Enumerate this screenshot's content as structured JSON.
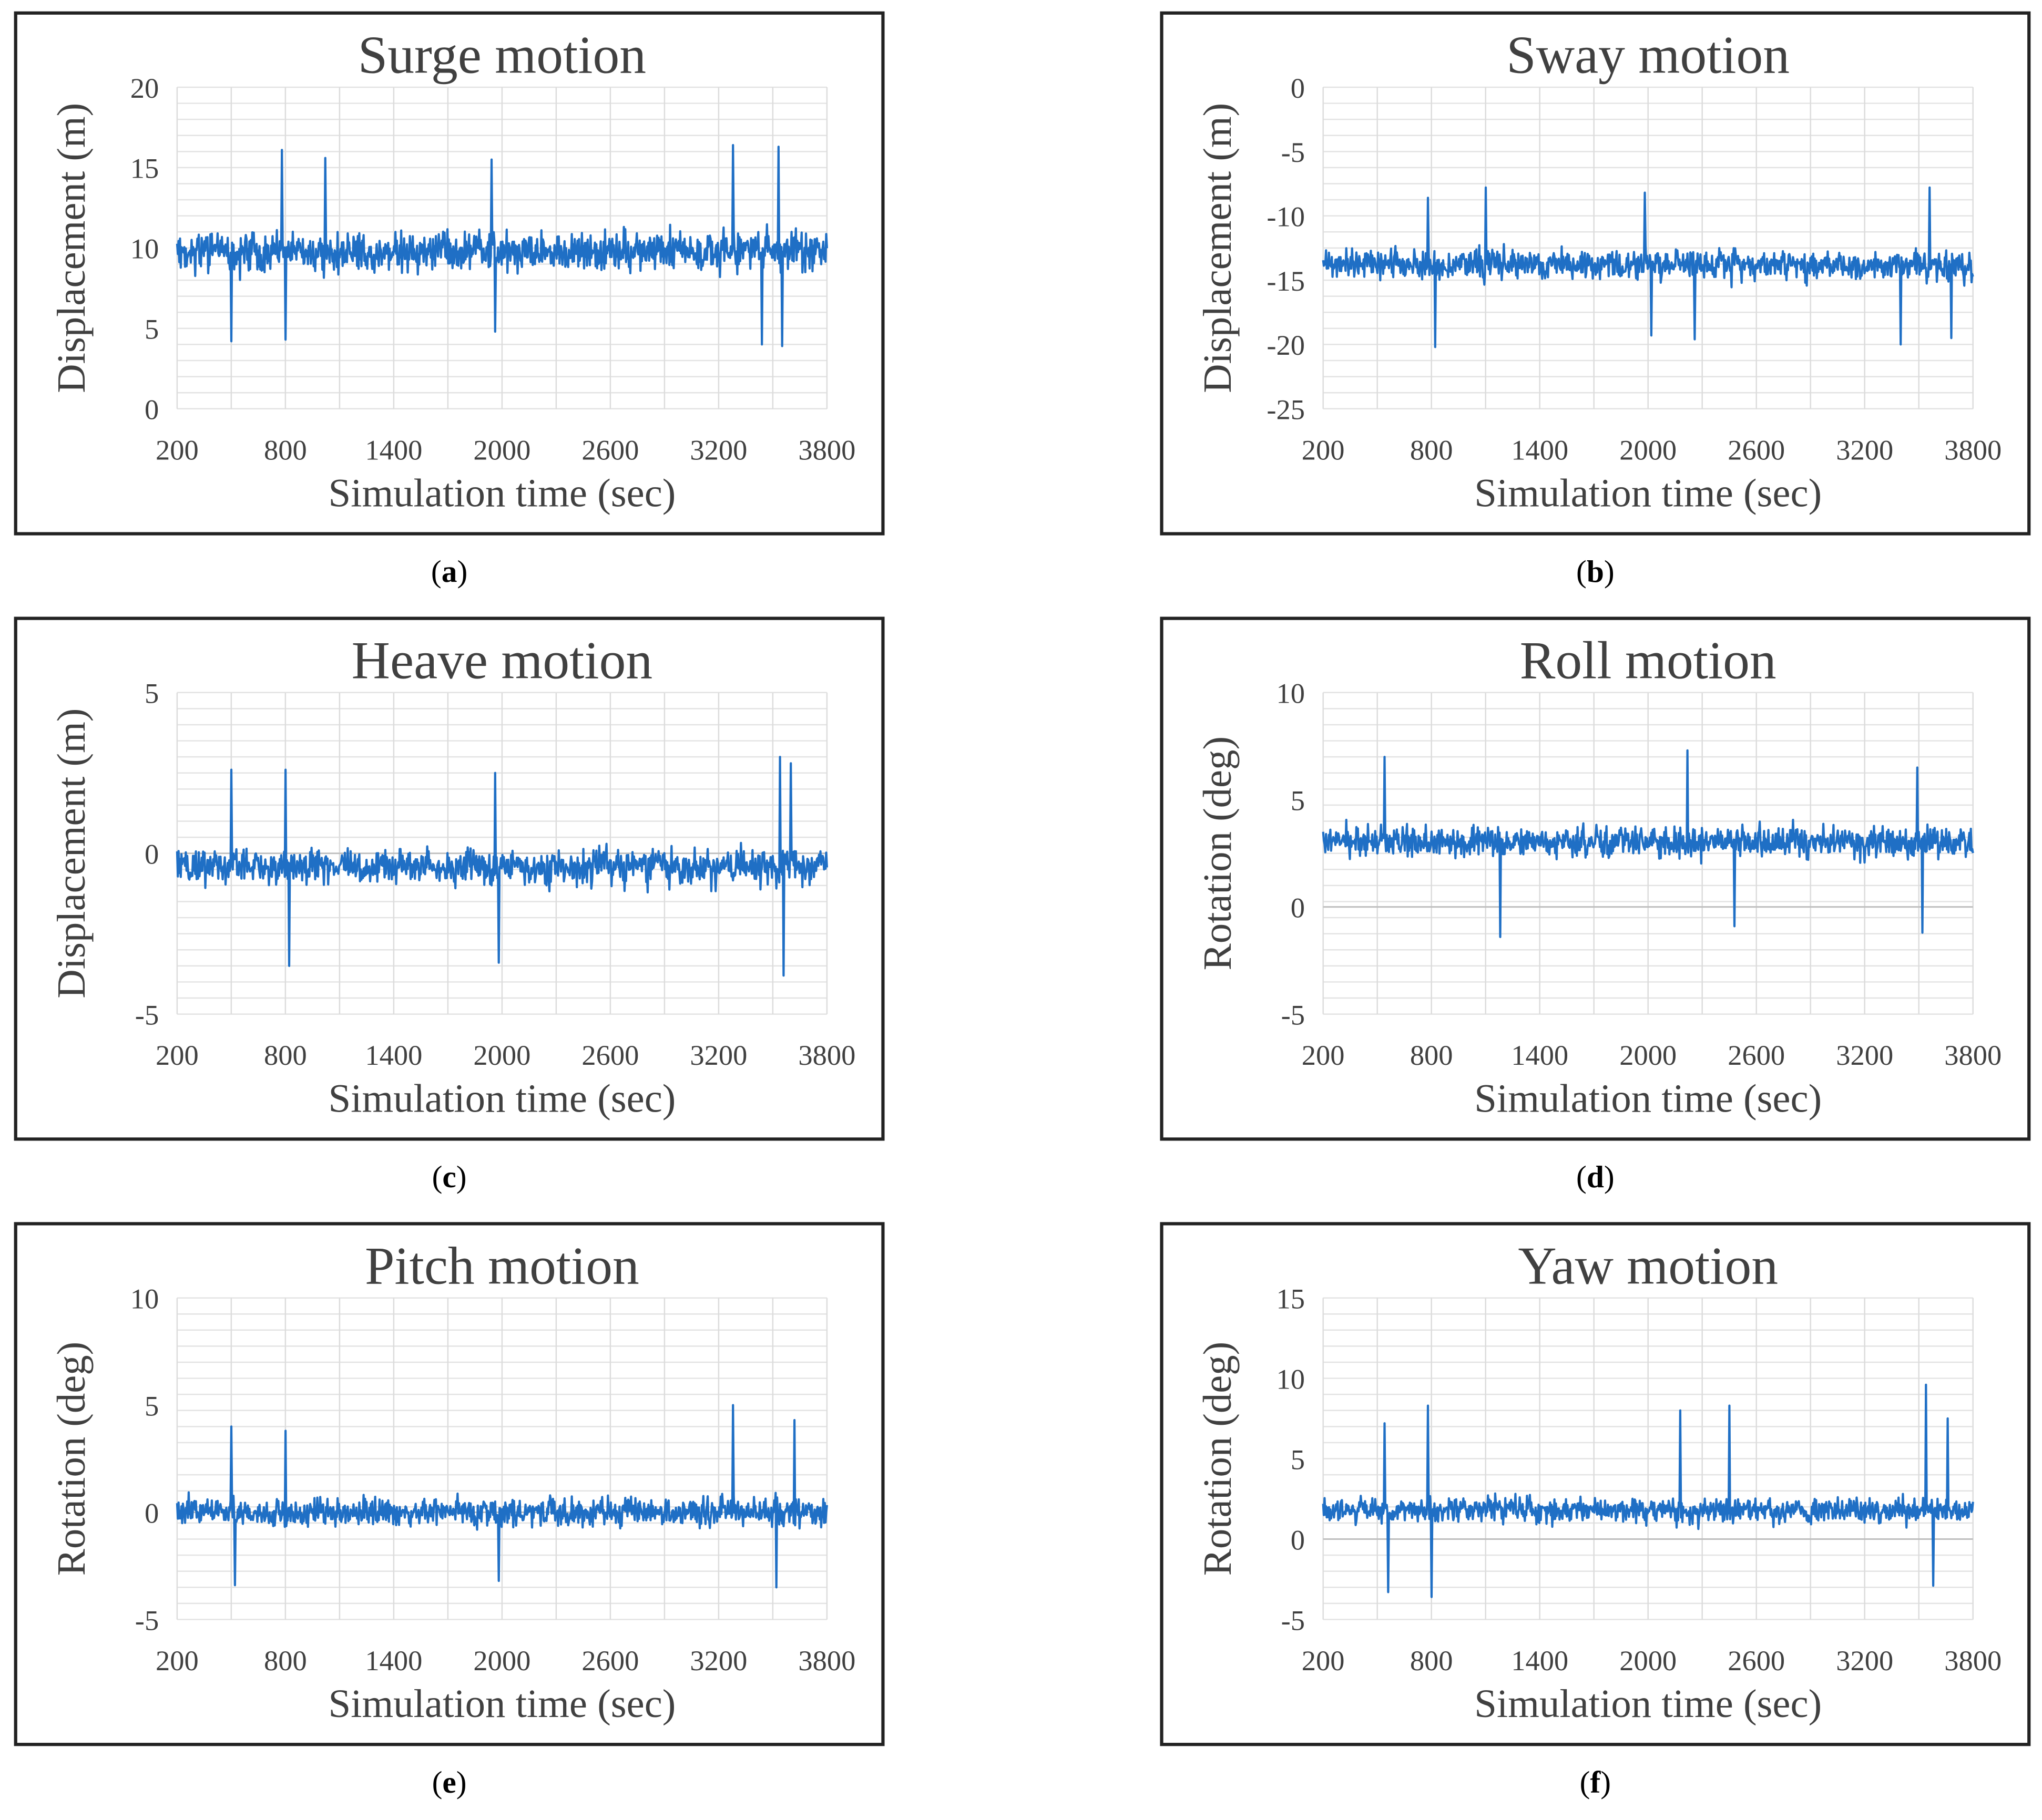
{
  "chart_data": [
    {
      "type": "line",
      "panel_label": "a",
      "title": "Surge motion",
      "xlabel": "Simulation time (sec)",
      "ylabel": "Displacement (m)",
      "xlim": [
        200,
        3800
      ],
      "ylim": [
        0,
        20
      ],
      "xticks": [
        "200",
        "800",
        "1400",
        "2000",
        "2600",
        "3200",
        "3800"
      ],
      "yticks": [
        "0",
        "5",
        "10",
        "15",
        "20"
      ],
      "series": [
        {
          "name": "Surge",
          "color": "#1f6fc5",
          "mean": 9.8,
          "amplitude": 2.3,
          "peaks": [
            [
              500,
              4.2
            ],
            [
              780,
              16.1
            ],
            [
              800,
              4.3
            ],
            [
              1020,
              15.6
            ],
            [
              1940,
              15.5
            ],
            [
              1960,
              4.8
            ],
            [
              3280,
              16.4
            ],
            [
              3440,
              4.0
            ],
            [
              3530,
              16.3
            ],
            [
              3550,
              3.9
            ]
          ]
        }
      ],
      "grid": true
    },
    {
      "type": "line",
      "panel_label": "b",
      "title": "Sway motion",
      "xlabel": "Simulation time (sec)",
      "ylabel": "Displacement (m)",
      "xlim": [
        200,
        3800
      ],
      "ylim": [
        -25,
        0
      ],
      "xticks": [
        "200",
        "800",
        "1400",
        "2000",
        "2600",
        "3200",
        "3800"
      ],
      "yticks": [
        "-25",
        "-20",
        "-15",
        "-10",
        "-5",
        "0"
      ],
      "series": [
        {
          "name": "Sway",
          "color": "#1f6fc5",
          "mean": -13.8,
          "amplitude": 2.1,
          "peaks": [
            [
              780,
              -8.6
            ],
            [
              820,
              -20.2
            ],
            [
              1100,
              -7.8
            ],
            [
              1980,
              -8.2
            ],
            [
              2020,
              -19.3
            ],
            [
              2260,
              -19.6
            ],
            [
              3400,
              -20.0
            ],
            [
              3560,
              -7.8
            ],
            [
              3680,
              -19.5
            ]
          ]
        }
      ],
      "grid": true
    },
    {
      "type": "line",
      "panel_label": "c",
      "title": "Heave motion",
      "xlabel": "Simulation time (sec)",
      "ylabel": "Displacement (m)",
      "xlim": [
        200,
        3800
      ],
      "ylim": [
        -5,
        5
      ],
      "xticks": [
        "200",
        "800",
        "1400",
        "2000",
        "2600",
        "3200",
        "3800"
      ],
      "yticks": [
        "-5",
        "0",
        "5"
      ],
      "series": [
        {
          "name": "Heave",
          "color": "#1f6fc5",
          "mean": -0.4,
          "amplitude": 1.0,
          "peaks": [
            [
              500,
              2.6
            ],
            [
              800,
              2.6
            ],
            [
              820,
              -3.5
            ],
            [
              1960,
              2.5
            ],
            [
              1980,
              -3.4
            ],
            [
              3540,
              3.0
            ],
            [
              3560,
              -3.8
            ],
            [
              3600,
              2.8
            ]
          ]
        }
      ],
      "grid": true
    },
    {
      "type": "line",
      "panel_label": "d",
      "title": "Roll motion",
      "xlabel": "Simulation time (sec)",
      "ylabel": "Rotation (deg)",
      "xlim": [
        200,
        3800
      ],
      "ylim": [
        -5,
        10
      ],
      "xticks": [
        "200",
        "800",
        "1400",
        "2000",
        "2600",
        "3200",
        "3800"
      ],
      "yticks": [
        "-5",
        "0",
        "5",
        "10"
      ],
      "series": [
        {
          "name": "Roll",
          "color": "#1f6fc5",
          "mean": 3.0,
          "amplitude": 1.3,
          "peaks": [
            [
              540,
              7.0
            ],
            [
              1180,
              -1.4
            ],
            [
              2220,
              7.3
            ],
            [
              2480,
              -0.9
            ],
            [
              3520,
              -1.2
            ],
            [
              3490,
              6.5
            ]
          ]
        }
      ],
      "grid": true
    },
    {
      "type": "line",
      "panel_label": "e",
      "title": "Pitch motion",
      "xlabel": "Simulation time (sec)",
      "ylabel": "Rotation (deg)",
      "xlim": [
        200,
        3800
      ],
      "ylim": [
        -5,
        10
      ],
      "xticks": [
        "200",
        "800",
        "1400",
        "2000",
        "2600",
        "3200",
        "3800"
      ],
      "yticks": [
        "-5",
        "0",
        "5",
        "10"
      ],
      "series": [
        {
          "name": "Pitch",
          "color": "#1f6fc5",
          "mean": 0.0,
          "amplitude": 1.2,
          "peaks": [
            [
              500,
              4.0
            ],
            [
              520,
              -3.4
            ],
            [
              800,
              3.8
            ],
            [
              1980,
              -3.2
            ],
            [
              3280,
              5.0
            ],
            [
              3520,
              -3.5
            ],
            [
              3620,
              4.3
            ]
          ]
        }
      ],
      "grid": true
    },
    {
      "type": "line",
      "panel_label": "f",
      "title": "Yaw motion",
      "xlabel": "Simulation time (sec)",
      "ylabel": "Rotation (deg)",
      "xlim": [
        200,
        3800
      ],
      "ylim": [
        -5,
        15
      ],
      "xticks": [
        "200",
        "800",
        "1400",
        "2000",
        "2600",
        "3200",
        "3800"
      ],
      "yticks": [
        "-5",
        "0",
        "5",
        "10",
        "15"
      ],
      "series": [
        {
          "name": "Yaw",
          "color": "#1f6fc5",
          "mean": 1.8,
          "amplitude": 1.4,
          "peaks": [
            [
              540,
              7.2
            ],
            [
              560,
              -3.3
            ],
            [
              780,
              8.3
            ],
            [
              800,
              -3.6
            ],
            [
              2180,
              8.0
            ],
            [
              2450,
              8.3
            ],
            [
              3540,
              9.6
            ],
            [
              3580,
              -2.9
            ],
            [
              3660,
              7.5
            ]
          ]
        }
      ],
      "grid": true
    }
  ]
}
